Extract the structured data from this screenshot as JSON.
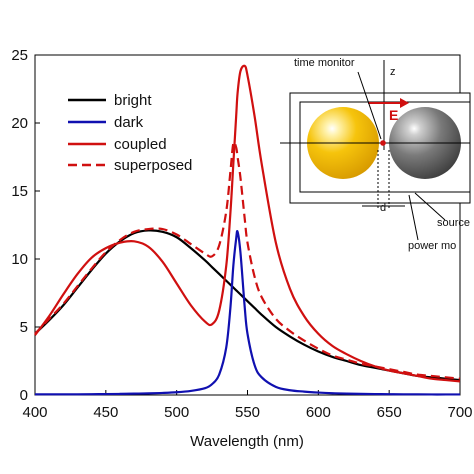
{
  "chart_data": {
    "type": "line",
    "xlabel": "Wavelength (nm)",
    "ylabel": "",
    "xlim": [
      400,
      700
    ],
    "ylim": [
      0,
      25
    ],
    "xticks": [
      400,
      450,
      500,
      550,
      600,
      650,
      700
    ],
    "yticks": [
      0,
      5,
      10,
      15,
      20,
      25
    ],
    "x_tick_labels": [
      "400",
      "450",
      "500",
      "550",
      "600",
      "650",
      "700"
    ],
    "y_tick_labels": [
      "0",
      "5",
      "10",
      "15",
      "20",
      "25"
    ],
    "grid": false,
    "legend_position": "upper-left",
    "x": [
      400,
      410,
      420,
      430,
      440,
      450,
      460,
      470,
      480,
      490,
      500,
      510,
      520,
      525,
      530,
      535,
      538,
      540,
      542,
      543,
      545,
      548,
      550,
      555,
      560,
      570,
      580,
      590,
      600,
      610,
      620,
      630,
      640,
      650,
      660,
      670,
      680,
      690,
      700
    ],
    "series": [
      {
        "name": "bright",
        "color": "#000000",
        "dash": "solid",
        "values": [
          4.5,
          5.5,
          6.6,
          7.9,
          9.2,
          10.4,
          11.3,
          11.9,
          12.1,
          12.0,
          11.6,
          10.8,
          9.9,
          9.4,
          8.9,
          8.4,
          8.1,
          7.9,
          7.7,
          7.6,
          7.4,
          7.1,
          6.9,
          6.4,
          5.9,
          5.0,
          4.3,
          3.7,
          3.2,
          2.8,
          2.5,
          2.2,
          2.0,
          1.8,
          1.6,
          1.4,
          1.3,
          1.2,
          1.1
        ]
      },
      {
        "name": "dark",
        "color": "#1010b0",
        "dash": "solid",
        "values": [
          0.05,
          0.05,
          0.05,
          0.05,
          0.06,
          0.07,
          0.08,
          0.1,
          0.12,
          0.15,
          0.2,
          0.3,
          0.5,
          0.8,
          1.5,
          3.5,
          6.5,
          9.5,
          11.5,
          12.0,
          10.5,
          6.5,
          4.5,
          2.2,
          1.3,
          0.6,
          0.35,
          0.25,
          0.18,
          0.13,
          0.1,
          0.08,
          0.07,
          0.06,
          0.05,
          0.05,
          0.04,
          0.04,
          0.04
        ]
      },
      {
        "name": "coupled",
        "color": "#d01010",
        "dash": "solid",
        "values": [
          4.4,
          5.8,
          7.4,
          8.9,
          10.1,
          10.8,
          11.2,
          11.3,
          10.9,
          9.8,
          8.2,
          6.6,
          5.4,
          5.2,
          6.2,
          9.5,
          13.5,
          17.0,
          20.5,
          22.2,
          23.8,
          24.2,
          23.5,
          20.5,
          17.0,
          11.2,
          7.8,
          5.8,
          4.5,
          3.6,
          3.0,
          2.5,
          2.1,
          1.8,
          1.6,
          1.4,
          1.2,
          1.1,
          1.0
        ]
      },
      {
        "name": "superposed",
        "color": "#d01010",
        "dash": "dashed",
        "values": [
          4.5,
          5.6,
          6.7,
          8.0,
          9.3,
          10.5,
          11.4,
          12.0,
          12.2,
          12.2,
          11.8,
          11.1,
          10.4,
          10.2,
          11.0,
          13.5,
          16.5,
          18.5,
          18.2,
          17.5,
          16.0,
          13.0,
          11.2,
          8.7,
          7.2,
          5.6,
          4.7,
          4.0,
          3.4,
          2.9,
          2.6,
          2.3,
          2.1,
          1.9,
          1.7,
          1.5,
          1.4,
          1.3,
          1.2
        ]
      }
    ]
  },
  "inset": {
    "time_monitor_label": "time monitor",
    "z_label": "z",
    "e_label": "E",
    "d_label": "d",
    "source_label": "source",
    "power_monitor_label": "power mo",
    "left_particle_color": "#f2b705",
    "right_particle_color": "#6e6e6e",
    "field_color": "#d01010"
  }
}
